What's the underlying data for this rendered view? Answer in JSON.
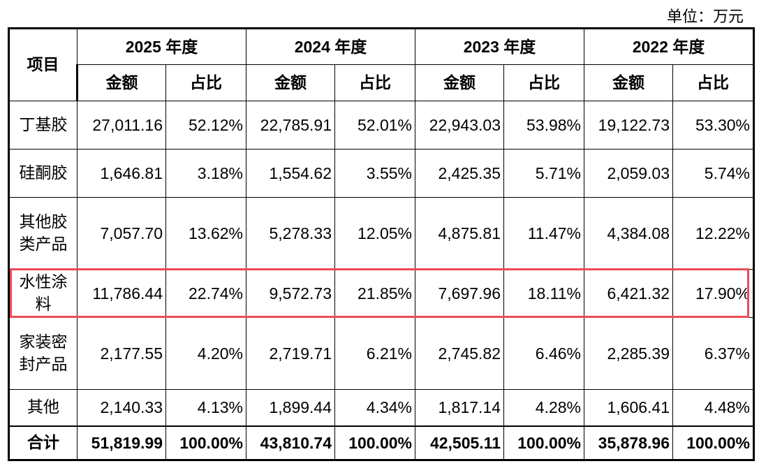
{
  "unit_label": "单位：万元",
  "header": {
    "item": "项目",
    "years": [
      "2025 年度",
      "2024 年度",
      "2023 年度",
      "2022 年度"
    ],
    "amount": "金额",
    "ratio": "占比"
  },
  "rows": [
    {
      "name": "丁基胶",
      "values": [
        "27,011.16",
        "52.12%",
        "22,785.91",
        "52.01%",
        "22,943.03",
        "53.98%",
        "19,122.73",
        "53.30%"
      ]
    },
    {
      "name": "硅酮胶",
      "values": [
        "1,646.81",
        "3.18%",
        "1,554.62",
        "3.55%",
        "2,425.35",
        "5.71%",
        "2,059.03",
        "5.74%"
      ]
    },
    {
      "name": "其他胶类产品",
      "values": [
        "7,057.70",
        "13.62%",
        "5,278.33",
        "12.05%",
        "4,875.81",
        "11.47%",
        "4,384.08",
        "12.22%"
      ]
    },
    {
      "name": "水性涂料",
      "values": [
        "11,786.44",
        "22.74%",
        "9,572.73",
        "21.85%",
        "7,697.96",
        "18.11%",
        "6,421.32",
        "17.90%"
      ],
      "highlighted": true
    },
    {
      "name": "家装密封产品",
      "values": [
        "2,177.55",
        "4.20%",
        "2,719.71",
        "6.21%",
        "2,745.82",
        "6.46%",
        "2,285.39",
        "6.37%"
      ]
    },
    {
      "name": "其他",
      "values": [
        "2,140.33",
        "4.13%",
        "1,899.44",
        "4.34%",
        "1,817.14",
        "4.28%",
        "1,606.41",
        "4.48%"
      ]
    }
  ],
  "total": {
    "name": "合计",
    "values": [
      "51,819.99",
      "100.00%",
      "43,810.74",
      "100.00%",
      "42,505.11",
      "100.00%",
      "35,878.96",
      "100.00%"
    ]
  },
  "colors": {
    "highlight_border": "#ee4b57"
  }
}
